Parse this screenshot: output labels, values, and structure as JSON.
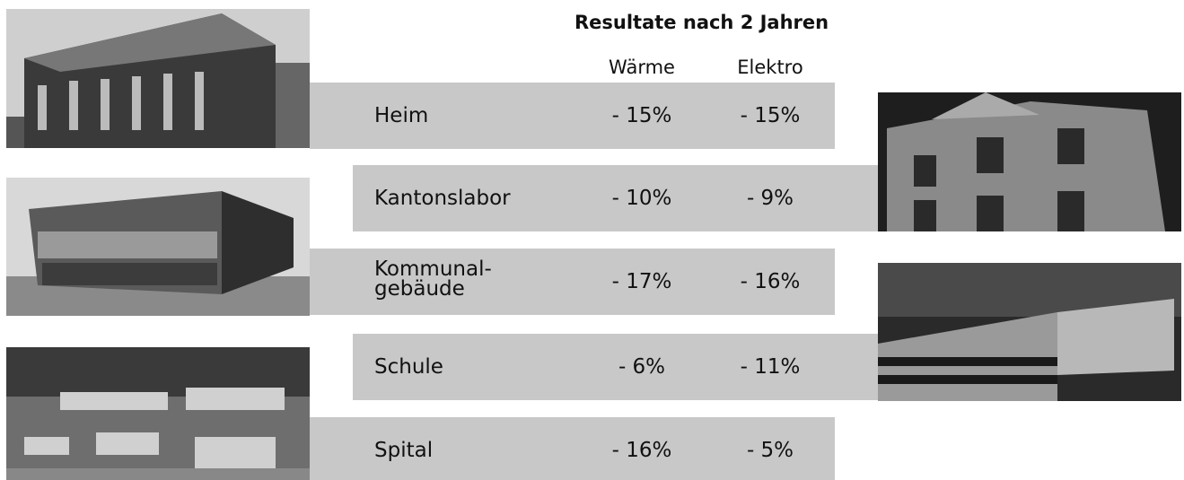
{
  "header": {
    "title": "Resultate nach 2 Jahren"
  },
  "table": {
    "columns": [
      "Wärme",
      "Elektro"
    ],
    "rows": [
      [
        "Heim",
        "- 15%",
        "- 15%"
      ],
      [
        "Kantonslabor",
        "- 10%",
        "- 9%"
      ],
      [
        "Kommunal-\ngebäude",
        "- 17%",
        "- 16%"
      ],
      [
        "Schule",
        "- 6%",
        "- 11%"
      ],
      [
        "Spital",
        "- 16%",
        "- 5%"
      ]
    ]
  }
}
